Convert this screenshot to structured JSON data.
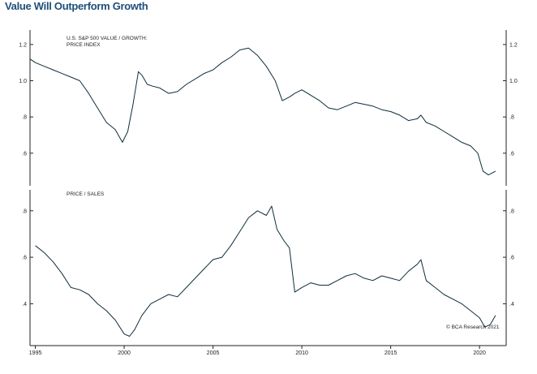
{
  "title": "Value Will Outperform Growth",
  "source": "© BCA Research 2021",
  "colors": {
    "title": "#1f4e79",
    "line": "#0f2d3a",
    "axis": "#222222"
  },
  "x_ticks": [
    "1995",
    "2000",
    "2005",
    "2010",
    "2015",
    "2020"
  ],
  "chart_data": [
    {
      "type": "line",
      "label_lines": [
        "U.S. S&P 500 VALUE / GROWTH:",
        "PRICE INDEX"
      ],
      "xlim": [
        1994.7,
        2021.5
      ],
      "ylim": [
        0.42,
        1.28
      ],
      "yticks": [
        0.6,
        0.8,
        1.0,
        1.2
      ],
      "ytick_labels": [
        ".6",
        ".8",
        "1.0",
        "1.2"
      ],
      "x": [
        1994.7,
        1995.0,
        1995.5,
        1996.0,
        1996.5,
        1997.0,
        1997.5,
        1998.0,
        1998.5,
        1999.0,
        1999.5,
        1999.9,
        2000.2,
        2000.5,
        2000.8,
        2001.0,
        2001.3,
        2001.6,
        2002.0,
        2002.5,
        2003.0,
        2003.5,
        2004.0,
        2004.5,
        2005.0,
        2005.5,
        2006.0,
        2006.5,
        2007.0,
        2007.5,
        2008.0,
        2008.5,
        2008.9,
        2009.3,
        2009.6,
        2010.0,
        2010.5,
        2011.0,
        2011.5,
        2012.0,
        2012.5,
        2013.0,
        2013.5,
        2014.0,
        2014.5,
        2015.0,
        2015.5,
        2016.0,
        2016.5,
        2016.7,
        2017.0,
        2017.5,
        2018.0,
        2018.5,
        2019.0,
        2019.5,
        2019.9,
        2020.2,
        2020.5,
        2020.9
      ],
      "y": [
        1.12,
        1.1,
        1.08,
        1.06,
        1.04,
        1.02,
        1.0,
        0.93,
        0.85,
        0.77,
        0.73,
        0.66,
        0.72,
        0.87,
        1.05,
        1.03,
        0.98,
        0.97,
        0.96,
        0.93,
        0.94,
        0.98,
        1.01,
        1.04,
        1.06,
        1.1,
        1.13,
        1.17,
        1.18,
        1.14,
        1.08,
        1.0,
        0.89,
        0.91,
        0.93,
        0.95,
        0.92,
        0.89,
        0.85,
        0.84,
        0.86,
        0.88,
        0.87,
        0.86,
        0.84,
        0.83,
        0.81,
        0.78,
        0.79,
        0.81,
        0.77,
        0.75,
        0.72,
        0.69,
        0.66,
        0.64,
        0.6,
        0.5,
        0.48,
        0.5
      ]
    },
    {
      "type": "line",
      "label_lines": [
        "PRICE / SALES"
      ],
      "xlim": [
        1994.7,
        2021.5
      ],
      "ylim": [
        0.22,
        0.89
      ],
      "yticks": [
        0.4,
        0.6,
        0.8
      ],
      "ytick_labels": [
        ".4",
        ".6",
        ".8"
      ],
      "x": [
        1995.0,
        1995.5,
        1996.0,
        1996.5,
        1997.0,
        1997.5,
        1998.0,
        1998.5,
        1999.0,
        1999.5,
        2000.0,
        2000.3,
        2000.6,
        2001.0,
        2001.5,
        2002.0,
        2002.5,
        2003.0,
        2003.5,
        2004.0,
        2004.5,
        2005.0,
        2005.5,
        2006.0,
        2006.5,
        2007.0,
        2007.5,
        2008.0,
        2008.3,
        2008.6,
        2009.0,
        2009.3,
        2009.6,
        2010.0,
        2010.5,
        2011.0,
        2011.5,
        2012.0,
        2012.5,
        2013.0,
        2013.5,
        2014.0,
        2014.5,
        2015.0,
        2015.5,
        2016.0,
        2016.5,
        2016.7,
        2017.0,
        2017.5,
        2018.0,
        2018.5,
        2019.0,
        2019.5,
        2020.0,
        2020.3,
        2020.6,
        2020.9
      ],
      "y": [
        0.65,
        0.62,
        0.58,
        0.53,
        0.47,
        0.46,
        0.44,
        0.4,
        0.37,
        0.33,
        0.27,
        0.26,
        0.29,
        0.35,
        0.4,
        0.42,
        0.44,
        0.43,
        0.47,
        0.51,
        0.55,
        0.59,
        0.6,
        0.65,
        0.71,
        0.77,
        0.8,
        0.78,
        0.82,
        0.72,
        0.67,
        0.64,
        0.45,
        0.47,
        0.49,
        0.48,
        0.48,
        0.5,
        0.52,
        0.53,
        0.51,
        0.5,
        0.52,
        0.51,
        0.5,
        0.54,
        0.57,
        0.59,
        0.5,
        0.47,
        0.44,
        0.42,
        0.4,
        0.37,
        0.34,
        0.3,
        0.31,
        0.35
      ]
    }
  ]
}
